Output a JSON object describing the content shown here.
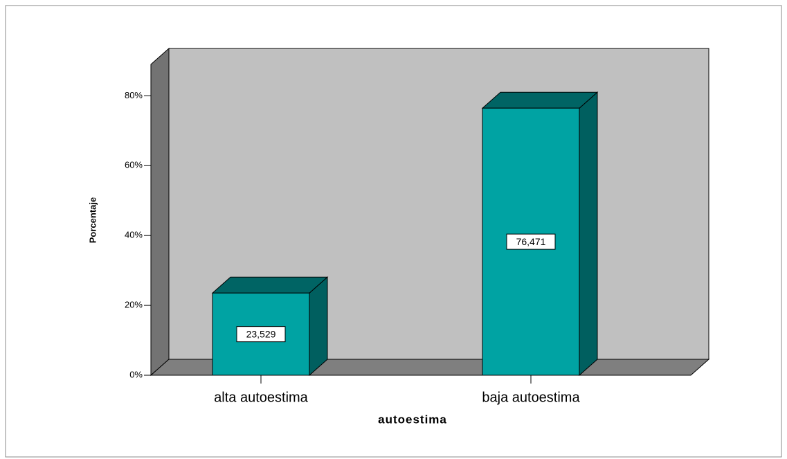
{
  "chart_data": {
    "type": "bar3d",
    "xlabel": "autoestima",
    "ylabel": "Porcentaje",
    "categories": [
      "alta autoestima",
      "baja autoestima"
    ],
    "values": [
      23.529,
      76.471
    ],
    "value_labels": [
      "23,529",
      "76,471"
    ],
    "color": "#00a3a3",
    "ylim": [
      0,
      89
    ],
    "yticks": [
      {
        "value": 0,
        "label": "0%"
      },
      {
        "value": 20,
        "label": "20%"
      },
      {
        "value": 40,
        "label": "40%"
      },
      {
        "value": 60,
        "label": "60%"
      },
      {
        "value": 80,
        "label": "80%"
      }
    ]
  }
}
